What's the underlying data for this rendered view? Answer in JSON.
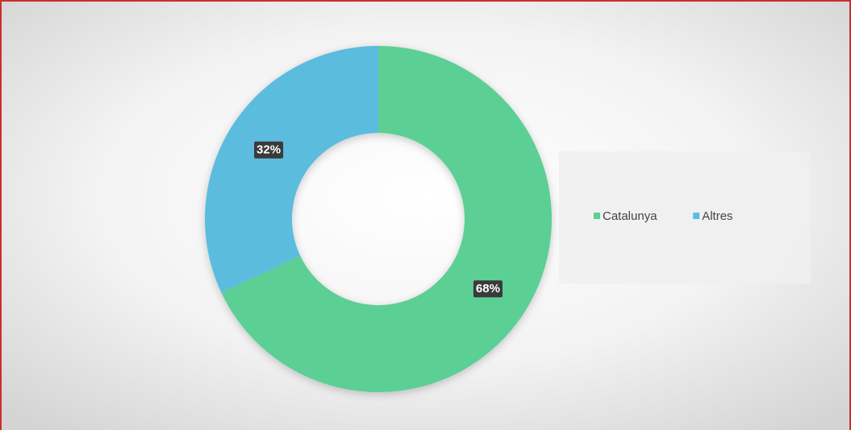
{
  "chart_data": {
    "type": "pie",
    "categories": [
      "Catalunya",
      "Altres"
    ],
    "values": [
      68,
      32
    ],
    "value_labels": [
      "68%",
      "32%"
    ],
    "colors": [
      "#5ccf95",
      "#5bbcdd"
    ],
    "legend": "right"
  }
}
